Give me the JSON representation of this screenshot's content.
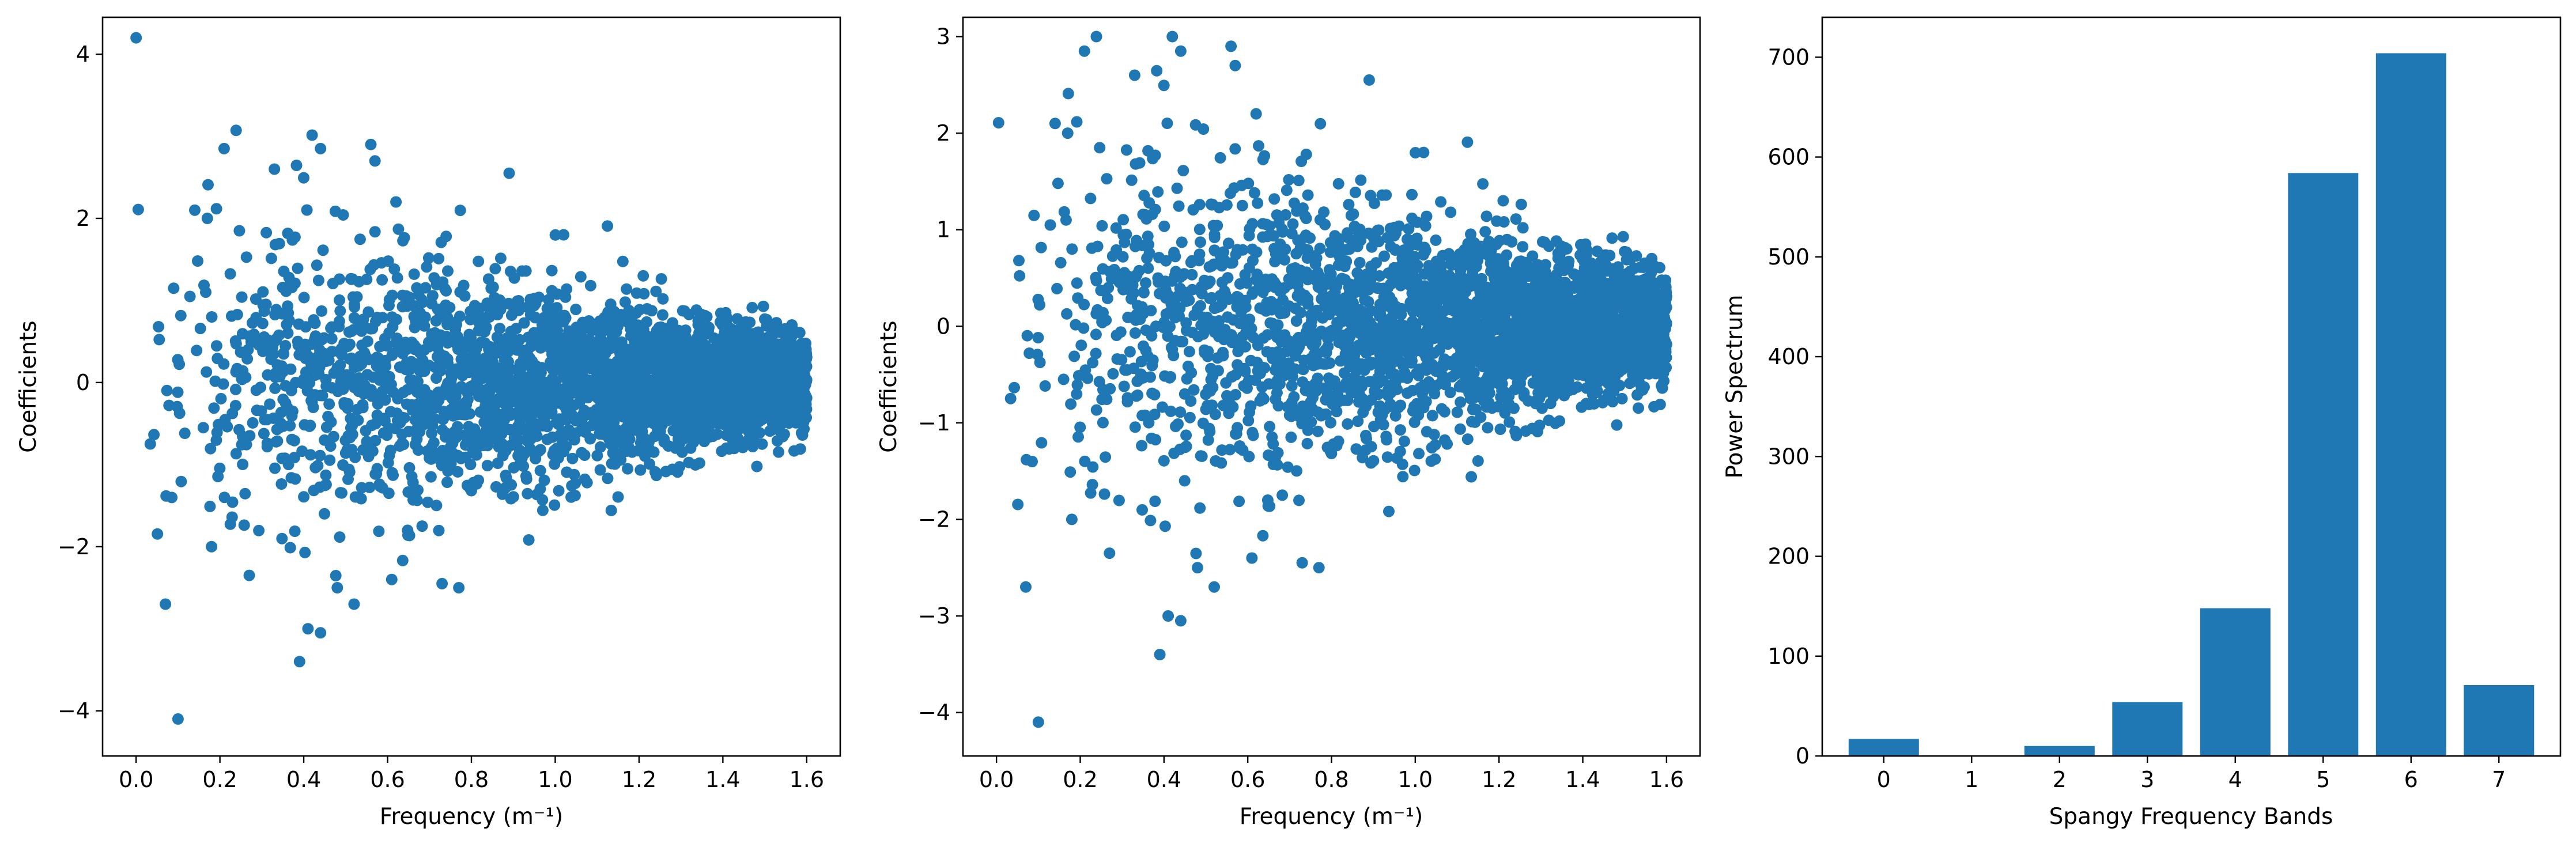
{
  "colors": {
    "marker": "#1f77b4",
    "axes": "#000000",
    "background": "#ffffff"
  },
  "chart_data": [
    {
      "type": "scatter",
      "title": "",
      "xlabel": "Frequency (m⁻¹)",
      "ylabel": "Coefficients",
      "xlim": [
        -0.08,
        1.68
      ],
      "ylim": [
        -4.55,
        4.45
      ],
      "xticks": [
        0.0,
        0.2,
        0.4,
        0.6,
        0.8,
        1.0,
        1.2,
        1.4,
        1.6
      ],
      "xtick_labels": [
        "0.0",
        "0.2",
        "0.4",
        "0.6",
        "0.8",
        "1.0",
        "1.2",
        "1.4",
        "1.6"
      ],
      "yticks": [
        -4,
        -2,
        0,
        2,
        4
      ],
      "ytick_labels": [
        "−4",
        "−2",
        "0",
        "2",
        "4"
      ],
      "grid": false,
      "distribution": {
        "n_points": 3000,
        "x_range": [
          0.0,
          1.6
        ],
        "y_center": 0.0,
        "spread_low_freq": 1.05,
        "spread_high_freq": 0.28,
        "seed": 11
      },
      "points": [
        {
          "x": 0.0,
          "y": 4.2
        },
        {
          "x": 0.1,
          "y": -4.1
        },
        {
          "x": 0.07,
          "y": -2.7
        },
        {
          "x": 0.39,
          "y": -3.4
        },
        {
          "x": 0.41,
          "y": -3.0
        },
        {
          "x": 0.44,
          "y": -3.05
        },
        {
          "x": 0.52,
          "y": -2.7
        },
        {
          "x": 0.21,
          "y": 2.85
        },
        {
          "x": 0.56,
          "y": 2.9
        },
        {
          "x": 0.57,
          "y": 2.7
        },
        {
          "x": 0.44,
          "y": 2.85
        },
        {
          "x": 0.89,
          "y": 2.55
        },
        {
          "x": 0.33,
          "y": 2.6
        },
        {
          "x": 0.14,
          "y": 2.1
        },
        {
          "x": 0.17,
          "y": 2.0
        },
        {
          "x": 0.77,
          "y": -2.5
        },
        {
          "x": 0.73,
          "y": -2.45
        },
        {
          "x": 0.61,
          "y": -2.4
        },
        {
          "x": 0.27,
          "y": -2.35
        },
        {
          "x": 0.18,
          "y": -2.0
        },
        {
          "x": 0.48,
          "y": -2.5
        },
        {
          "x": 1.02,
          "y": 1.8
        },
        {
          "x": 1.21,
          "y": 1.3
        },
        {
          "x": 0.62,
          "y": 2.2
        }
      ]
    },
    {
      "type": "scatter",
      "title": "",
      "xlabel": "Frequency (m⁻¹)",
      "ylabel": "Coefficients",
      "xlim": [
        -0.08,
        1.68
      ],
      "ylim": [
        -4.45,
        3.2
      ],
      "xticks": [
        0.0,
        0.2,
        0.4,
        0.6,
        0.8,
        1.0,
        1.2,
        1.4,
        1.6
      ],
      "xtick_labels": [
        "0.0",
        "0.2",
        "0.4",
        "0.6",
        "0.8",
        "1.0",
        "1.2",
        "1.4",
        "1.6"
      ],
      "yticks": [
        -4,
        -3,
        -2,
        -1,
        0,
        1,
        2,
        3
      ],
      "ytick_labels": [
        "−4",
        "−3",
        "−2",
        "−1",
        "0",
        "1",
        "2",
        "3"
      ],
      "grid": false,
      "distribution": {
        "n_points": 3000,
        "x_range": [
          0.0,
          1.6
        ],
        "y_center": 0.0,
        "spread_low_freq": 1.05,
        "spread_high_freq": 0.28,
        "seed": 11
      },
      "points": [
        {
          "x": 0.1,
          "y": -4.1
        },
        {
          "x": 0.07,
          "y": -2.7
        },
        {
          "x": 0.39,
          "y": -3.4
        },
        {
          "x": 0.41,
          "y": -3.0
        },
        {
          "x": 0.44,
          "y": -3.05
        },
        {
          "x": 0.52,
          "y": -2.7
        },
        {
          "x": 0.21,
          "y": 2.85
        },
        {
          "x": 0.56,
          "y": 2.9
        },
        {
          "x": 0.57,
          "y": 2.7
        },
        {
          "x": 0.44,
          "y": 2.85
        },
        {
          "x": 0.89,
          "y": 2.55
        },
        {
          "x": 0.33,
          "y": 2.6
        },
        {
          "x": 0.14,
          "y": 2.1
        },
        {
          "x": 0.17,
          "y": 2.0
        },
        {
          "x": 0.77,
          "y": -2.5
        },
        {
          "x": 0.73,
          "y": -2.45
        },
        {
          "x": 0.61,
          "y": -2.4
        },
        {
          "x": 0.27,
          "y": -2.35
        },
        {
          "x": 0.18,
          "y": -2.0
        },
        {
          "x": 0.48,
          "y": -2.5
        },
        {
          "x": 1.02,
          "y": 1.8
        },
        {
          "x": 1.21,
          "y": 1.3
        },
        {
          "x": 0.62,
          "y": 2.2
        }
      ]
    },
    {
      "type": "bar",
      "title": "",
      "xlabel": "Spangy Frequency Bands",
      "ylabel": "Power Spectrum",
      "categories": [
        "0",
        "1",
        "2",
        "3",
        "4",
        "5",
        "6",
        "7"
      ],
      "values": [
        17,
        0,
        10,
        54,
        148,
        584,
        704,
        71
      ],
      "xlim": [
        -0.7,
        7.7
      ],
      "ylim": [
        0,
        740
      ],
      "yticks": [
        0,
        100,
        200,
        300,
        400,
        500,
        600,
        700
      ],
      "ytick_labels": [
        "0",
        "100",
        "200",
        "300",
        "400",
        "500",
        "600",
        "700"
      ],
      "grid": false
    }
  ]
}
